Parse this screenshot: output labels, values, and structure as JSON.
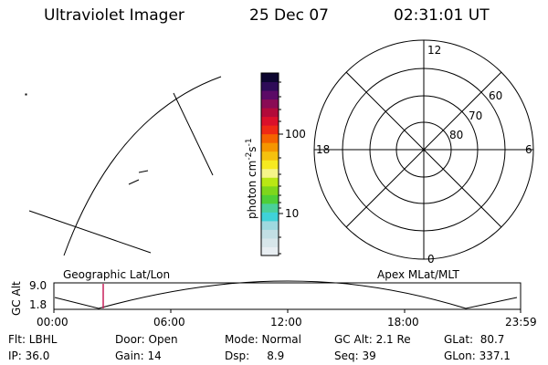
{
  "header": {
    "title": "Ultraviolet Imager",
    "date": "25 Dec 07",
    "time": "02:31:01 UT"
  },
  "colorbar": {
    "label": "photon cm",
    "exp1": "-2",
    "mid": "s",
    "exp2": "-1",
    "tick_100": "100",
    "tick_10": "10",
    "colors": [
      "#e8eef2",
      "#d7e6ea",
      "#c2dfe4",
      "#9fd9df",
      "#3fd2d8",
      "#4ad09a",
      "#4ecf38",
      "#7ed61c",
      "#b9e714",
      "#f5f58a",
      "#f6ea20",
      "#f5c10e",
      "#f59600",
      "#f56300",
      "#ef2a14",
      "#db102a",
      "#b20a3a",
      "#8a0b55",
      "#5b0a66",
      "#2e0b58",
      "#0d0630"
    ]
  },
  "map": {
    "geo_label": "Geographic Lat/Lon",
    "apex_label": "Apex MLat/MLT"
  },
  "polar": {
    "mlt": {
      "top": "12",
      "left": "18",
      "right": "6",
      "bottom": "0"
    },
    "lat": [
      "60",
      "70",
      "80"
    ]
  },
  "alt_plot": {
    "axis_label": "GC Alt",
    "ymax": "9.0",
    "ymin": "1.8",
    "xticks": [
      "00:00",
      "06:00",
      "12:00",
      "18:00",
      "23:59"
    ],
    "marker_color": "#c8205a"
  },
  "info": {
    "flt": "Flt: LBHL",
    "ip": "IP: 36.0",
    "door": "Door: Open",
    "gain": "Gain: 14",
    "mode": "Mode: Normal",
    "dsp": "Dsp:     8.9",
    "gcalt": "GC Alt: 2.1 Re",
    "seq": "Seq: 39",
    "glat": "GLat:  80.7",
    "glon": "GLon: 337.1"
  }
}
